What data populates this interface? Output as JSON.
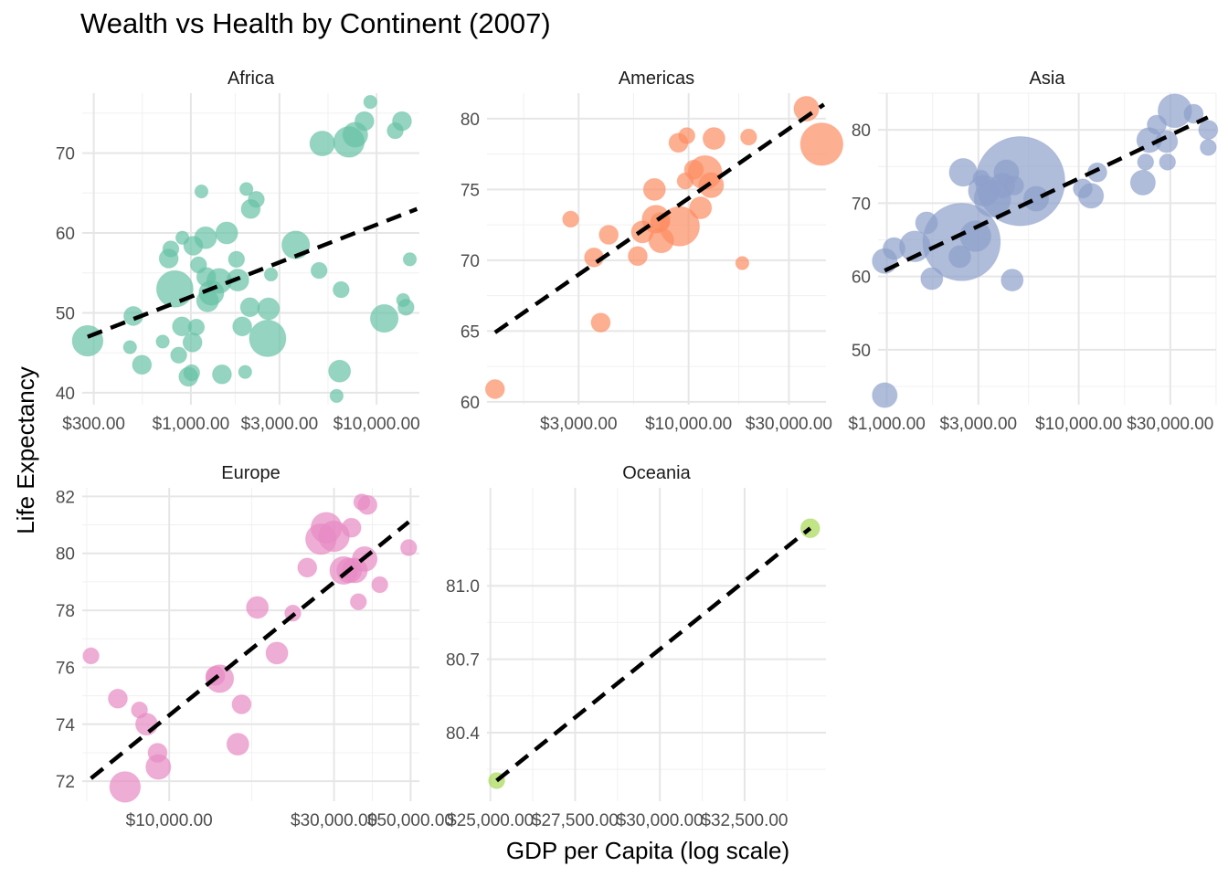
{
  "title": "Wealth vs Health by Continent (2007)",
  "xlabel": "GDP per Capita (log scale)",
  "ylabel": "Life Expectancy",
  "chart_data": [
    {
      "type": "scatter",
      "panel": "Africa",
      "color": "#66c2a5",
      "xscale": "log",
      "xlim": [
        260,
        17000
      ],
      "ylim": [
        38.5,
        77.5
      ],
      "xticks": [
        300,
        1000,
        3000,
        10000
      ],
      "xtick_labels": [
        "$300.00",
        "$1,000.00",
        "$3,000.00",
        "$10,000.00"
      ],
      "yticks": [
        40,
        50,
        60,
        70
      ],
      "ytick_labels": [
        "40",
        "50",
        "60",
        "70"
      ],
      "trend": {
        "x": [
          278,
          16500
        ],
        "y": [
          47.0,
          63.0
        ]
      },
      "points": [
        {
          "x": 278,
          "y": 46.5,
          "size": 4
        },
        {
          "x": 470,
          "y": 45.7,
          "size": 1
        },
        {
          "x": 490,
          "y": 49.6,
          "size": 2
        },
        {
          "x": 545,
          "y": 43.5,
          "size": 2
        },
        {
          "x": 705,
          "y": 46.4,
          "size": 1
        },
        {
          "x": 760,
          "y": 56.8,
          "size": 2
        },
        {
          "x": 780,
          "y": 58.0,
          "size": 1.5
        },
        {
          "x": 820,
          "y": 53.0,
          "size": 5
        },
        {
          "x": 860,
          "y": 44.7,
          "size": 1.5
        },
        {
          "x": 895,
          "y": 48.3,
          "size": 2
        },
        {
          "x": 900,
          "y": 59.4,
          "size": 1
        },
        {
          "x": 970,
          "y": 42.0,
          "size": 2
        },
        {
          "x": 1010,
          "y": 42.5,
          "size": 1.5
        },
        {
          "x": 1020,
          "y": 46.3,
          "size": 2
        },
        {
          "x": 1030,
          "y": 58.4,
          "size": 2
        },
        {
          "x": 1070,
          "y": 48.2,
          "size": 1.5
        },
        {
          "x": 1100,
          "y": 56.0,
          "size": 1.5
        },
        {
          "x": 1140,
          "y": 65.2,
          "size": 1
        },
        {
          "x": 1200,
          "y": 59.4,
          "size": 2.5
        },
        {
          "x": 1210,
          "y": 54.5,
          "size": 2
        },
        {
          "x": 1230,
          "y": 51.5,
          "size": 2.5
        },
        {
          "x": 1290,
          "y": 52.5,
          "size": 3
        },
        {
          "x": 1420,
          "y": 54.0,
          "size": 3
        },
        {
          "x": 1470,
          "y": 42.3,
          "size": 2
        },
        {
          "x": 1560,
          "y": 60.0,
          "size": 2.5
        },
        {
          "x": 1760,
          "y": 56.7,
          "size": 1.5
        },
        {
          "x": 1790,
          "y": 54.1,
          "size": 2.5
        },
        {
          "x": 1890,
          "y": 48.3,
          "size": 2
        },
        {
          "x": 1960,
          "y": 42.6,
          "size": 1
        },
        {
          "x": 1990,
          "y": 65.5,
          "size": 1
        },
        {
          "x": 2080,
          "y": 50.7,
          "size": 2
        },
        {
          "x": 2100,
          "y": 63.0,
          "size": 2
        },
        {
          "x": 2250,
          "y": 64.2,
          "size": 1.5
        },
        {
          "x": 2590,
          "y": 46.8,
          "size": 5
        },
        {
          "x": 2620,
          "y": 50.5,
          "size": 2.5
        },
        {
          "x": 2700,
          "y": 54.8,
          "size": 1
        },
        {
          "x": 3670,
          "y": 58.5,
          "size": 3.5
        },
        {
          "x": 4900,
          "y": 55.3,
          "size": 1.5
        },
        {
          "x": 5100,
          "y": 71.2,
          "size": 3
        },
        {
          "x": 6090,
          "y": 39.6,
          "size": 1
        },
        {
          "x": 6320,
          "y": 42.7,
          "size": 2.5
        },
        {
          "x": 6440,
          "y": 52.9,
          "size": 1.5
        },
        {
          "x": 7100,
          "y": 71.4,
          "size": 4
        },
        {
          "x": 7680,
          "y": 72.3,
          "size": 3
        },
        {
          "x": 8600,
          "y": 74.0,
          "size": 2
        },
        {
          "x": 9250,
          "y": 76.4,
          "size": 1
        },
        {
          "x": 11000,
          "y": 49.3,
          "size": 3.5
        },
        {
          "x": 12600,
          "y": 72.8,
          "size": 1.5
        },
        {
          "x": 13700,
          "y": 74.0,
          "size": 2
        },
        {
          "x": 13900,
          "y": 51.6,
          "size": 1
        },
        {
          "x": 14400,
          "y": 50.7,
          "size": 1.5
        },
        {
          "x": 15100,
          "y": 56.7,
          "size": 1
        }
      ]
    },
    {
      "type": "scatter",
      "panel": "Americas",
      "color": "#fc8d62",
      "xscale": "log",
      "xlim": [
        1100,
        45000
      ],
      "ylim": [
        59.8,
        81.8
      ],
      "xticks": [
        3000,
        10000,
        30000
      ],
      "xtick_labels": [
        "$3,000.00",
        "$10,000.00",
        "$30,000.00"
      ],
      "yticks": [
        60,
        65,
        70,
        75,
        80
      ],
      "ytick_labels": [
        "60",
        "65",
        "70",
        "75",
        "80"
      ],
      "trend": {
        "x": [
          1201,
          44000
        ],
        "y": [
          64.9,
          81.0
        ]
      },
      "points": [
        {
          "x": 1201,
          "y": 60.9,
          "size": 2
        },
        {
          "x": 2750,
          "y": 72.9,
          "size": 1.5
        },
        {
          "x": 3550,
          "y": 70.2,
          "size": 2
        },
        {
          "x": 3820,
          "y": 65.6,
          "size": 2
        },
        {
          "x": 4170,
          "y": 71.8,
          "size": 2
        },
        {
          "x": 5730,
          "y": 70.3,
          "size": 2
        },
        {
          "x": 6030,
          "y": 72.0,
          "size": 2.5
        },
        {
          "x": 6880,
          "y": 75.0,
          "size": 2.5
        },
        {
          "x": 7000,
          "y": 72.9,
          "size": 3.5
        },
        {
          "x": 7320,
          "y": 72.7,
          "size": 2
        },
        {
          "x": 7410,
          "y": 71.4,
          "size": 3
        },
        {
          "x": 8950,
          "y": 78.3,
          "size": 2
        },
        {
          "x": 9070,
          "y": 72.4,
          "size": 5.5
        },
        {
          "x": 9640,
          "y": 75.6,
          "size": 1.5
        },
        {
          "x": 9810,
          "y": 78.8,
          "size": 1.5
        },
        {
          "x": 10600,
          "y": 76.4,
          "size": 2
        },
        {
          "x": 11400,
          "y": 73.7,
          "size": 2.5
        },
        {
          "x": 11977,
          "y": 76.2,
          "size": 4.5
        },
        {
          "x": 12800,
          "y": 75.3,
          "size": 3
        },
        {
          "x": 13200,
          "y": 78.6,
          "size": 2.5
        },
        {
          "x": 18000,
          "y": 69.8,
          "size": 1
        },
        {
          "x": 19300,
          "y": 78.7,
          "size": 1.5
        },
        {
          "x": 36300,
          "y": 80.7,
          "size": 3
        },
        {
          "x": 42950,
          "y": 78.2,
          "size": 6
        }
      ]
    },
    {
      "type": "scatter",
      "panel": "Asia",
      "color": "#8da0cb",
      "xscale": "log",
      "xlim": [
        900,
        52000
      ],
      "ylim": [
        42.5,
        85
      ],
      "xticks": [
        1000,
        3000,
        10000,
        30000
      ],
      "xtick_labels": [
        "$1,000.00",
        "$3,000.00",
        "$10,000.00",
        "$30,000.00"
      ],
      "yticks": [
        50,
        60,
        70,
        80
      ],
      "ytick_labels": [
        "50",
        "60",
        "70",
        "80"
      ],
      "trend": {
        "x": [
          975,
          47000
        ],
        "y": [
          60.8,
          81.7
        ]
      },
      "points": [
        {
          "x": 975,
          "y": 43.8,
          "size": 3
        },
        {
          "x": 975,
          "y": 62.1,
          "size": 3
        },
        {
          "x": 1090,
          "y": 63.8,
          "size": 2.5
        },
        {
          "x": 1400,
          "y": 64.1,
          "size": 4
        },
        {
          "x": 1610,
          "y": 67.3,
          "size": 2.5
        },
        {
          "x": 1715,
          "y": 59.7,
          "size": 2.5
        },
        {
          "x": 2400,
          "y": 62.7,
          "size": 2.5
        },
        {
          "x": 2452,
          "y": 64.7,
          "size": 12
        },
        {
          "x": 2500,
          "y": 74.2,
          "size": 3.5
        },
        {
          "x": 2900,
          "y": 65.5,
          "size": 4
        },
        {
          "x": 3100,
          "y": 73.4,
          "size": 1.5
        },
        {
          "x": 3200,
          "y": 71.7,
          "size": 4
        },
        {
          "x": 3550,
          "y": 70.6,
          "size": 5
        },
        {
          "x": 4000,
          "y": 72.4,
          "size": 3
        },
        {
          "x": 4200,
          "y": 74.2,
          "size": 3
        },
        {
          "x": 4500,
          "y": 59.5,
          "size": 2.5
        },
        {
          "x": 4600,
          "y": 72.4,
          "size": 2
        },
        {
          "x": 4959,
          "y": 73.0,
          "size": 14
        },
        {
          "x": 6000,
          "y": 70.6,
          "size": 3
        },
        {
          "x": 10500,
          "y": 72.0,
          "size": 2
        },
        {
          "x": 11600,
          "y": 71.0,
          "size": 3
        },
        {
          "x": 12500,
          "y": 74.2,
          "size": 2
        },
        {
          "x": 21600,
          "y": 72.8,
          "size": 3
        },
        {
          "x": 22300,
          "y": 75.6,
          "size": 1.5
        },
        {
          "x": 23300,
          "y": 78.6,
          "size": 3
        },
        {
          "x": 25500,
          "y": 80.7,
          "size": 2
        },
        {
          "x": 28700,
          "y": 78.4,
          "size": 2.5
        },
        {
          "x": 29000,
          "y": 75.6,
          "size": 1.5
        },
        {
          "x": 31700,
          "y": 82.6,
          "size": 4.5
        },
        {
          "x": 39700,
          "y": 82.2,
          "size": 2
        },
        {
          "x": 47300,
          "y": 80.0,
          "size": 2
        },
        {
          "x": 47300,
          "y": 77.6,
          "size": 1.5
        }
      ]
    },
    {
      "type": "scatter",
      "panel": "Europe",
      "color": "#e78ac3",
      "xscale": "log",
      "xlim": [
        5600,
        53000
      ],
      "ylim": [
        71.3,
        82.3
      ],
      "xticks": [
        10000,
        30000,
        50000
      ],
      "xtick_labels": [
        "$10,000.00",
        "$30,000.00",
        "$50,000.00"
      ],
      "yticks": [
        72,
        74,
        76,
        78,
        80,
        82
      ],
      "ytick_labels": [
        "72",
        "74",
        "76",
        "78",
        "80",
        "82"
      ],
      "trend": {
        "x": [
          5937,
          49357
        ],
        "y": [
          72.1,
          81.1
        ]
      },
      "points": [
        {
          "x": 5937,
          "y": 76.4,
          "size": 1.5
        },
        {
          "x": 7100,
          "y": 74.9,
          "size": 2
        },
        {
          "x": 7450,
          "y": 71.8,
          "size": 4
        },
        {
          "x": 8200,
          "y": 74.5,
          "size": 1.5
        },
        {
          "x": 8600,
          "y": 74.0,
          "size": 2.5
        },
        {
          "x": 9253,
          "y": 73.0,
          "size": 2
        },
        {
          "x": 9300,
          "y": 72.5,
          "size": 3
        },
        {
          "x": 13600,
          "y": 75.7,
          "size": 2
        },
        {
          "x": 14000,
          "y": 75.6,
          "size": 3.5
        },
        {
          "x": 15800,
          "y": 73.3,
          "size": 2.5
        },
        {
          "x": 16200,
          "y": 74.7,
          "size": 2
        },
        {
          "x": 18000,
          "y": 78.1,
          "size": 2.5
        },
        {
          "x": 20500,
          "y": 76.5,
          "size": 2.5
        },
        {
          "x": 22800,
          "y": 77.9,
          "size": 1.5
        },
        {
          "x": 25100,
          "y": 79.5,
          "size": 2
        },
        {
          "x": 27500,
          "y": 80.5,
          "size": 4
        },
        {
          "x": 28500,
          "y": 80.9,
          "size": 4
        },
        {
          "x": 30000,
          "y": 80.6,
          "size": 4
        },
        {
          "x": 32000,
          "y": 79.4,
          "size": 3.5
        },
        {
          "x": 33200,
          "y": 79.4,
          "size": 3
        },
        {
          "x": 33700,
          "y": 80.9,
          "size": 2
        },
        {
          "x": 34500,
          "y": 79.4,
          "size": 3
        },
        {
          "x": 35300,
          "y": 78.3,
          "size": 1.5
        },
        {
          "x": 36100,
          "y": 81.8,
          "size": 1.5
        },
        {
          "x": 36800,
          "y": 79.8,
          "size": 3
        },
        {
          "x": 37500,
          "y": 81.7,
          "size": 2
        },
        {
          "x": 40700,
          "y": 78.9,
          "size": 1.5
        },
        {
          "x": 49357,
          "y": 80.2,
          "size": 1.5
        }
      ]
    },
    {
      "type": "scatter",
      "panel": "Oceania",
      "color": "#a6d854",
      "xscale": "linear",
      "xlim": [
        24900,
        34900
      ],
      "ylim": [
        80.12,
        81.4
      ],
      "xticks": [
        25000,
        27500,
        30000,
        32500
      ],
      "xtick_labels": [
        "$25,000.00",
        "$27,500.00",
        "$30,000.00",
        "$32,500.00"
      ],
      "yticks": [
        80.4,
        80.7,
        81.0
      ],
      "ytick_labels": [
        "80.4",
        "80.7",
        "81.0"
      ],
      "trend": {
        "x": [
          25185,
          34435
        ],
        "y": [
          80.204,
          81.235
        ]
      },
      "points": [
        {
          "x": 25185,
          "y": 80.204,
          "size": 1.5
        },
        {
          "x": 34435,
          "y": 81.235,
          "size": 2
        }
      ]
    }
  ]
}
